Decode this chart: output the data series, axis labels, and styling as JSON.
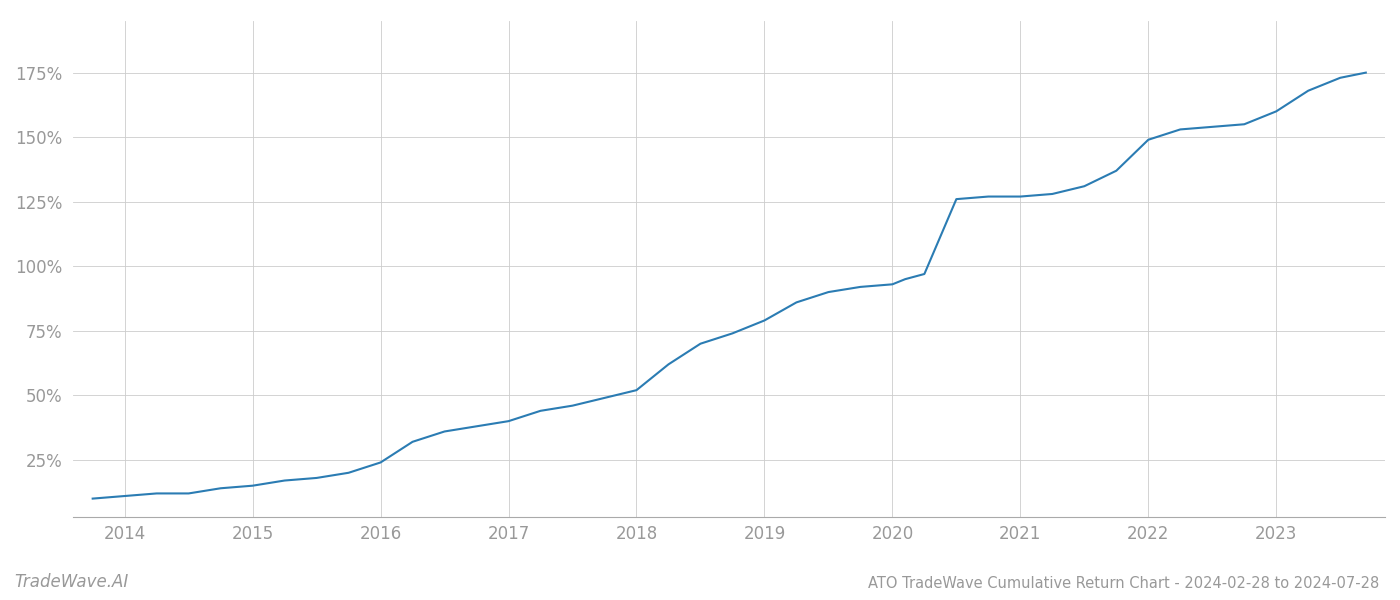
{
  "title": "ATO TradeWave Cumulative Return Chart - 2024-02-28 to 2024-07-28",
  "watermark": "TradeWave.AI",
  "line_color": "#2b7cb3",
  "background_color": "#ffffff",
  "grid_color": "#cccccc",
  "x_years": [
    2014,
    2015,
    2016,
    2017,
    2018,
    2019,
    2020,
    2021,
    2022,
    2023
  ],
  "x_values": [
    2013.75,
    2014.0,
    2014.25,
    2014.5,
    2014.75,
    2015.0,
    2015.25,
    2015.5,
    2015.75,
    2016.0,
    2016.25,
    2016.5,
    2016.75,
    2017.0,
    2017.25,
    2017.5,
    2017.75,
    2018.0,
    2018.25,
    2018.5,
    2018.75,
    2019.0,
    2019.25,
    2019.5,
    2019.75,
    2020.0,
    2020.1,
    2020.25,
    2020.5,
    2020.75,
    2021.0,
    2021.25,
    2021.5,
    2021.75,
    2022.0,
    2022.25,
    2022.5,
    2022.75,
    2023.0,
    2023.25,
    2023.5,
    2023.7
  ],
  "y_values": [
    10,
    11,
    12,
    12,
    14,
    15,
    17,
    18,
    20,
    24,
    32,
    36,
    38,
    40,
    44,
    46,
    49,
    52,
    62,
    70,
    74,
    79,
    86,
    90,
    92,
    93,
    95,
    97,
    126,
    127,
    127,
    128,
    131,
    137,
    149,
    153,
    154,
    155,
    160,
    168,
    173,
    175
  ],
  "yticks": [
    25,
    50,
    75,
    100,
    125,
    150,
    175
  ],
  "ylim": [
    3,
    195
  ],
  "xlim": [
    2013.6,
    2023.85
  ],
  "tick_label_color": "#999999",
  "title_color": "#999999",
  "watermark_color": "#999999",
  "line_width": 1.5,
  "title_fontsize": 10.5,
  "tick_fontsize": 12,
  "watermark_fontsize": 12
}
